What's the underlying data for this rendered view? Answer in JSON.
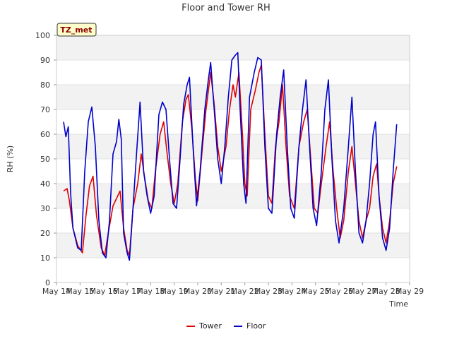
{
  "chart_data": {
    "type": "line",
    "title": "Floor and Tower RH",
    "xlabel": "Time",
    "ylabel": "RH (%)",
    "ylim": [
      0,
      100
    ],
    "yticks": [
      0,
      10,
      20,
      30,
      40,
      50,
      60,
      70,
      80,
      90,
      100
    ],
    "xlim": [
      14,
      29
    ],
    "xticks": [
      {
        "x": 14,
        "label": "May 14"
      },
      {
        "x": 15,
        "label": "May 15"
      },
      {
        "x": 16,
        "label": "May 16"
      },
      {
        "x": 17,
        "label": "May 17"
      },
      {
        "x": 18,
        "label": "May 18"
      },
      {
        "x": 19,
        "label": "May 19"
      },
      {
        "x": 20,
        "label": "May 20"
      },
      {
        "x": 21,
        "label": "May 21"
      },
      {
        "x": 22,
        "label": "May 22"
      },
      {
        "x": 23,
        "label": "May 23"
      },
      {
        "x": 24,
        "label": "May 24"
      },
      {
        "x": 25,
        "label": "May 25"
      },
      {
        "x": 26,
        "label": "May 26"
      },
      {
        "x": 27,
        "label": "May 27"
      },
      {
        "x": 28,
        "label": "May 28"
      },
      {
        "x": 29,
        "label": "May 29"
      }
    ],
    "site_label": "TZ_met",
    "series": [
      {
        "name": "Tower",
        "color": "#dd0000",
        "points": [
          [
            14.3,
            37
          ],
          [
            14.45,
            38
          ],
          [
            14.55,
            33
          ],
          [
            14.7,
            22
          ],
          [
            14.9,
            15
          ],
          [
            15.1,
            12
          ],
          [
            15.25,
            27
          ],
          [
            15.4,
            39
          ],
          [
            15.55,
            43
          ],
          [
            15.7,
            27
          ],
          [
            15.9,
            14
          ],
          [
            16.05,
            11
          ],
          [
            16.2,
            20
          ],
          [
            16.4,
            31
          ],
          [
            16.55,
            34
          ],
          [
            16.7,
            37
          ],
          [
            16.85,
            22
          ],
          [
            17.0,
            13
          ],
          [
            17.1,
            11
          ],
          [
            17.25,
            30
          ],
          [
            17.45,
            40
          ],
          [
            17.6,
            52
          ],
          [
            17.75,
            42
          ],
          [
            17.9,
            33
          ],
          [
            18.05,
            30
          ],
          [
            18.2,
            45
          ],
          [
            18.4,
            60
          ],
          [
            18.55,
            65
          ],
          [
            18.7,
            52
          ],
          [
            18.85,
            40
          ],
          [
            19.0,
            32
          ],
          [
            19.15,
            40
          ],
          [
            19.35,
            65
          ],
          [
            19.5,
            74
          ],
          [
            19.6,
            76
          ],
          [
            19.75,
            62
          ],
          [
            19.9,
            42
          ],
          [
            20.0,
            33
          ],
          [
            20.2,
            55
          ],
          [
            20.35,
            70
          ],
          [
            20.55,
            85
          ],
          [
            20.7,
            72
          ],
          [
            20.85,
            55
          ],
          [
            21.0,
            45
          ],
          [
            21.2,
            55
          ],
          [
            21.35,
            70
          ],
          [
            21.5,
            80
          ],
          [
            21.6,
            75
          ],
          [
            21.75,
            85
          ],
          [
            21.9,
            60
          ],
          [
            22.0,
            40
          ],
          [
            22.1,
            35
          ],
          [
            22.25,
            70
          ],
          [
            22.45,
            78
          ],
          [
            22.6,
            85
          ],
          [
            22.7,
            88
          ],
          [
            22.85,
            60
          ],
          [
            23.0,
            35
          ],
          [
            23.15,
            32
          ],
          [
            23.3,
            55
          ],
          [
            23.45,
            65
          ],
          [
            23.6,
            80
          ],
          [
            23.75,
            55
          ],
          [
            23.9,
            35
          ],
          [
            24.1,
            30
          ],
          [
            24.3,
            55
          ],
          [
            24.5,
            65
          ],
          [
            24.65,
            70
          ],
          [
            24.8,
            50
          ],
          [
            24.95,
            30
          ],
          [
            25.1,
            28
          ],
          [
            25.25,
            40
          ],
          [
            25.45,
            55
          ],
          [
            25.6,
            65
          ],
          [
            25.75,
            45
          ],
          [
            25.9,
            30
          ],
          [
            26.05,
            18
          ],
          [
            26.2,
            25
          ],
          [
            26.4,
            45
          ],
          [
            26.55,
            55
          ],
          [
            26.7,
            40
          ],
          [
            26.85,
            25
          ],
          [
            27.0,
            18
          ],
          [
            27.15,
            25
          ],
          [
            27.3,
            30
          ],
          [
            27.45,
            43
          ],
          [
            27.6,
            48
          ],
          [
            27.7,
            35
          ],
          [
            27.85,
            22
          ],
          [
            28.0,
            16
          ],
          [
            28.15,
            25
          ],
          [
            28.3,
            40
          ],
          [
            28.45,
            47
          ]
        ]
      },
      {
        "name": "Floor",
        "color": "#0000cc",
        "points": [
          [
            14.3,
            65
          ],
          [
            14.4,
            59
          ],
          [
            14.5,
            63
          ],
          [
            14.6,
            36
          ],
          [
            14.7,
            22
          ],
          [
            14.9,
            14
          ],
          [
            15.05,
            13
          ],
          [
            15.2,
            45
          ],
          [
            15.35,
            65
          ],
          [
            15.5,
            71
          ],
          [
            15.65,
            55
          ],
          [
            15.8,
            25
          ],
          [
            15.95,
            12
          ],
          [
            16.1,
            10
          ],
          [
            16.25,
            25
          ],
          [
            16.4,
            52
          ],
          [
            16.55,
            57
          ],
          [
            16.65,
            66
          ],
          [
            16.75,
            58
          ],
          [
            16.85,
            20
          ],
          [
            17.0,
            12
          ],
          [
            17.1,
            9
          ],
          [
            17.25,
            30
          ],
          [
            17.4,
            52
          ],
          [
            17.55,
            73
          ],
          [
            17.7,
            45
          ],
          [
            17.85,
            35
          ],
          [
            18.0,
            28
          ],
          [
            18.15,
            35
          ],
          [
            18.35,
            68
          ],
          [
            18.5,
            73
          ],
          [
            18.65,
            70
          ],
          [
            18.8,
            50
          ],
          [
            18.95,
            32
          ],
          [
            19.1,
            30
          ],
          [
            19.25,
            50
          ],
          [
            19.4,
            72
          ],
          [
            19.55,
            80
          ],
          [
            19.65,
            83
          ],
          [
            19.8,
            55
          ],
          [
            19.95,
            31
          ],
          [
            20.1,
            45
          ],
          [
            20.3,
            70
          ],
          [
            20.45,
            82
          ],
          [
            20.55,
            89
          ],
          [
            20.7,
            70
          ],
          [
            20.85,
            50
          ],
          [
            21.0,
            40
          ],
          [
            21.15,
            55
          ],
          [
            21.3,
            75
          ],
          [
            21.45,
            90
          ],
          [
            21.6,
            92
          ],
          [
            21.7,
            93
          ],
          [
            21.8,
            70
          ],
          [
            21.95,
            40
          ],
          [
            22.05,
            32
          ],
          [
            22.2,
            75
          ],
          [
            22.4,
            85
          ],
          [
            22.55,
            91
          ],
          [
            22.7,
            90
          ],
          [
            22.85,
            55
          ],
          [
            23.0,
            30
          ],
          [
            23.15,
            28
          ],
          [
            23.35,
            60
          ],
          [
            23.5,
            75
          ],
          [
            23.65,
            86
          ],
          [
            23.8,
            55
          ],
          [
            23.95,
            30
          ],
          [
            24.1,
            26
          ],
          [
            24.3,
            55
          ],
          [
            24.45,
            70
          ],
          [
            24.6,
            82
          ],
          [
            24.75,
            55
          ],
          [
            24.9,
            30
          ],
          [
            25.05,
            23
          ],
          [
            25.25,
            45
          ],
          [
            25.4,
            70
          ],
          [
            25.55,
            82
          ],
          [
            25.7,
            50
          ],
          [
            25.85,
            25
          ],
          [
            26.0,
            16
          ],
          [
            26.2,
            30
          ],
          [
            26.4,
            55
          ],
          [
            26.55,
            75
          ],
          [
            26.7,
            45
          ],
          [
            26.85,
            20
          ],
          [
            27.0,
            16
          ],
          [
            27.15,
            25
          ],
          [
            27.3,
            40
          ],
          [
            27.45,
            60
          ],
          [
            27.55,
            65
          ],
          [
            27.7,
            35
          ],
          [
            27.85,
            18
          ],
          [
            28.0,
            13
          ],
          [
            28.15,
            22
          ],
          [
            28.3,
            45
          ],
          [
            28.45,
            64
          ]
        ]
      }
    ]
  }
}
